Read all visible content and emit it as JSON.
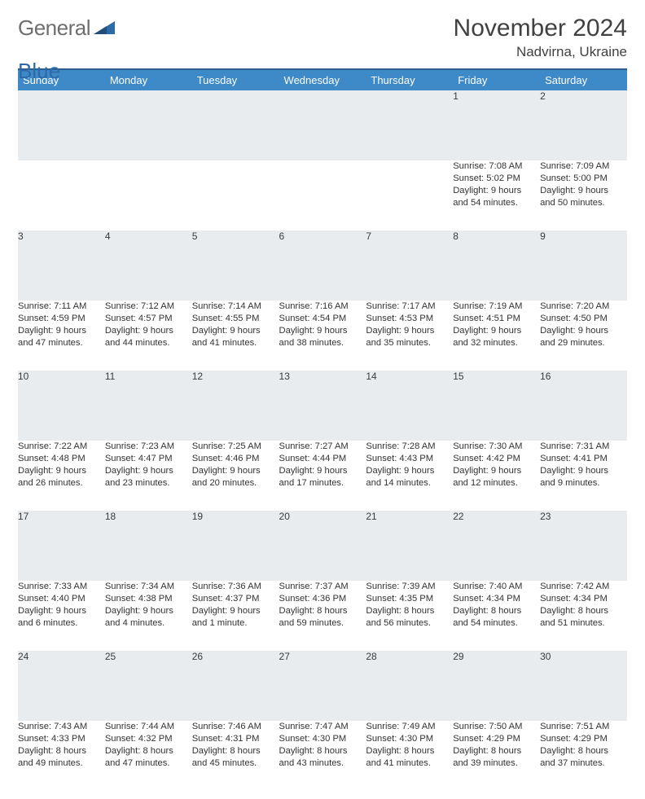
{
  "logo": {
    "text1": "General",
    "text2": "Blue"
  },
  "header": {
    "month": "November 2024",
    "location": "Nadvirna, Ukraine"
  },
  "colors": {
    "header_bg": "#3e89c8",
    "header_border": "#2b5e8e",
    "daynum_bg": "#e9ecef",
    "row_border": "#6d8aa6",
    "text": "#333333"
  },
  "weekdays": [
    "Sunday",
    "Monday",
    "Tuesday",
    "Wednesday",
    "Thursday",
    "Friday",
    "Saturday"
  ],
  "weeks": [
    {
      "nums": [
        "",
        "",
        "",
        "",
        "",
        "1",
        "2"
      ],
      "cells": [
        {},
        {},
        {},
        {},
        {},
        {
          "sunrise": "Sunrise: 7:08 AM",
          "sunset": "Sunset: 5:02 PM",
          "day1": "Daylight: 9 hours",
          "day2": "and 54 minutes."
        },
        {
          "sunrise": "Sunrise: 7:09 AM",
          "sunset": "Sunset: 5:00 PM",
          "day1": "Daylight: 9 hours",
          "day2": "and 50 minutes."
        }
      ]
    },
    {
      "nums": [
        "3",
        "4",
        "5",
        "6",
        "7",
        "8",
        "9"
      ],
      "cells": [
        {
          "sunrise": "Sunrise: 7:11 AM",
          "sunset": "Sunset: 4:59 PM",
          "day1": "Daylight: 9 hours",
          "day2": "and 47 minutes."
        },
        {
          "sunrise": "Sunrise: 7:12 AM",
          "sunset": "Sunset: 4:57 PM",
          "day1": "Daylight: 9 hours",
          "day2": "and 44 minutes."
        },
        {
          "sunrise": "Sunrise: 7:14 AM",
          "sunset": "Sunset: 4:55 PM",
          "day1": "Daylight: 9 hours",
          "day2": "and 41 minutes."
        },
        {
          "sunrise": "Sunrise: 7:16 AM",
          "sunset": "Sunset: 4:54 PM",
          "day1": "Daylight: 9 hours",
          "day2": "and 38 minutes."
        },
        {
          "sunrise": "Sunrise: 7:17 AM",
          "sunset": "Sunset: 4:53 PM",
          "day1": "Daylight: 9 hours",
          "day2": "and 35 minutes."
        },
        {
          "sunrise": "Sunrise: 7:19 AM",
          "sunset": "Sunset: 4:51 PM",
          "day1": "Daylight: 9 hours",
          "day2": "and 32 minutes."
        },
        {
          "sunrise": "Sunrise: 7:20 AM",
          "sunset": "Sunset: 4:50 PM",
          "day1": "Daylight: 9 hours",
          "day2": "and 29 minutes."
        }
      ]
    },
    {
      "nums": [
        "10",
        "11",
        "12",
        "13",
        "14",
        "15",
        "16"
      ],
      "cells": [
        {
          "sunrise": "Sunrise: 7:22 AM",
          "sunset": "Sunset: 4:48 PM",
          "day1": "Daylight: 9 hours",
          "day2": "and 26 minutes."
        },
        {
          "sunrise": "Sunrise: 7:23 AM",
          "sunset": "Sunset: 4:47 PM",
          "day1": "Daylight: 9 hours",
          "day2": "and 23 minutes."
        },
        {
          "sunrise": "Sunrise: 7:25 AM",
          "sunset": "Sunset: 4:46 PM",
          "day1": "Daylight: 9 hours",
          "day2": "and 20 minutes."
        },
        {
          "sunrise": "Sunrise: 7:27 AM",
          "sunset": "Sunset: 4:44 PM",
          "day1": "Daylight: 9 hours",
          "day2": "and 17 minutes."
        },
        {
          "sunrise": "Sunrise: 7:28 AM",
          "sunset": "Sunset: 4:43 PM",
          "day1": "Daylight: 9 hours",
          "day2": "and 14 minutes."
        },
        {
          "sunrise": "Sunrise: 7:30 AM",
          "sunset": "Sunset: 4:42 PM",
          "day1": "Daylight: 9 hours",
          "day2": "and 12 minutes."
        },
        {
          "sunrise": "Sunrise: 7:31 AM",
          "sunset": "Sunset: 4:41 PM",
          "day1": "Daylight: 9 hours",
          "day2": "and 9 minutes."
        }
      ]
    },
    {
      "nums": [
        "17",
        "18",
        "19",
        "20",
        "21",
        "22",
        "23"
      ],
      "cells": [
        {
          "sunrise": "Sunrise: 7:33 AM",
          "sunset": "Sunset: 4:40 PM",
          "day1": "Daylight: 9 hours",
          "day2": "and 6 minutes."
        },
        {
          "sunrise": "Sunrise: 7:34 AM",
          "sunset": "Sunset: 4:38 PM",
          "day1": "Daylight: 9 hours",
          "day2": "and 4 minutes."
        },
        {
          "sunrise": "Sunrise: 7:36 AM",
          "sunset": "Sunset: 4:37 PM",
          "day1": "Daylight: 9 hours",
          "day2": "and 1 minute."
        },
        {
          "sunrise": "Sunrise: 7:37 AM",
          "sunset": "Sunset: 4:36 PM",
          "day1": "Daylight: 8 hours",
          "day2": "and 59 minutes."
        },
        {
          "sunrise": "Sunrise: 7:39 AM",
          "sunset": "Sunset: 4:35 PM",
          "day1": "Daylight: 8 hours",
          "day2": "and 56 minutes."
        },
        {
          "sunrise": "Sunrise: 7:40 AM",
          "sunset": "Sunset: 4:34 PM",
          "day1": "Daylight: 8 hours",
          "day2": "and 54 minutes."
        },
        {
          "sunrise": "Sunrise: 7:42 AM",
          "sunset": "Sunset: 4:34 PM",
          "day1": "Daylight: 8 hours",
          "day2": "and 51 minutes."
        }
      ]
    },
    {
      "nums": [
        "24",
        "25",
        "26",
        "27",
        "28",
        "29",
        "30"
      ],
      "cells": [
        {
          "sunrise": "Sunrise: 7:43 AM",
          "sunset": "Sunset: 4:33 PM",
          "day1": "Daylight: 8 hours",
          "day2": "and 49 minutes."
        },
        {
          "sunrise": "Sunrise: 7:44 AM",
          "sunset": "Sunset: 4:32 PM",
          "day1": "Daylight: 8 hours",
          "day2": "and 47 minutes."
        },
        {
          "sunrise": "Sunrise: 7:46 AM",
          "sunset": "Sunset: 4:31 PM",
          "day1": "Daylight: 8 hours",
          "day2": "and 45 minutes."
        },
        {
          "sunrise": "Sunrise: 7:47 AM",
          "sunset": "Sunset: 4:30 PM",
          "day1": "Daylight: 8 hours",
          "day2": "and 43 minutes."
        },
        {
          "sunrise": "Sunrise: 7:49 AM",
          "sunset": "Sunset: 4:30 PM",
          "day1": "Daylight: 8 hours",
          "day2": "and 41 minutes."
        },
        {
          "sunrise": "Sunrise: 7:50 AM",
          "sunset": "Sunset: 4:29 PM",
          "day1": "Daylight: 8 hours",
          "day2": "and 39 minutes."
        },
        {
          "sunrise": "Sunrise: 7:51 AM",
          "sunset": "Sunset: 4:29 PM",
          "day1": "Daylight: 8 hours",
          "day2": "and 37 minutes."
        }
      ]
    }
  ]
}
